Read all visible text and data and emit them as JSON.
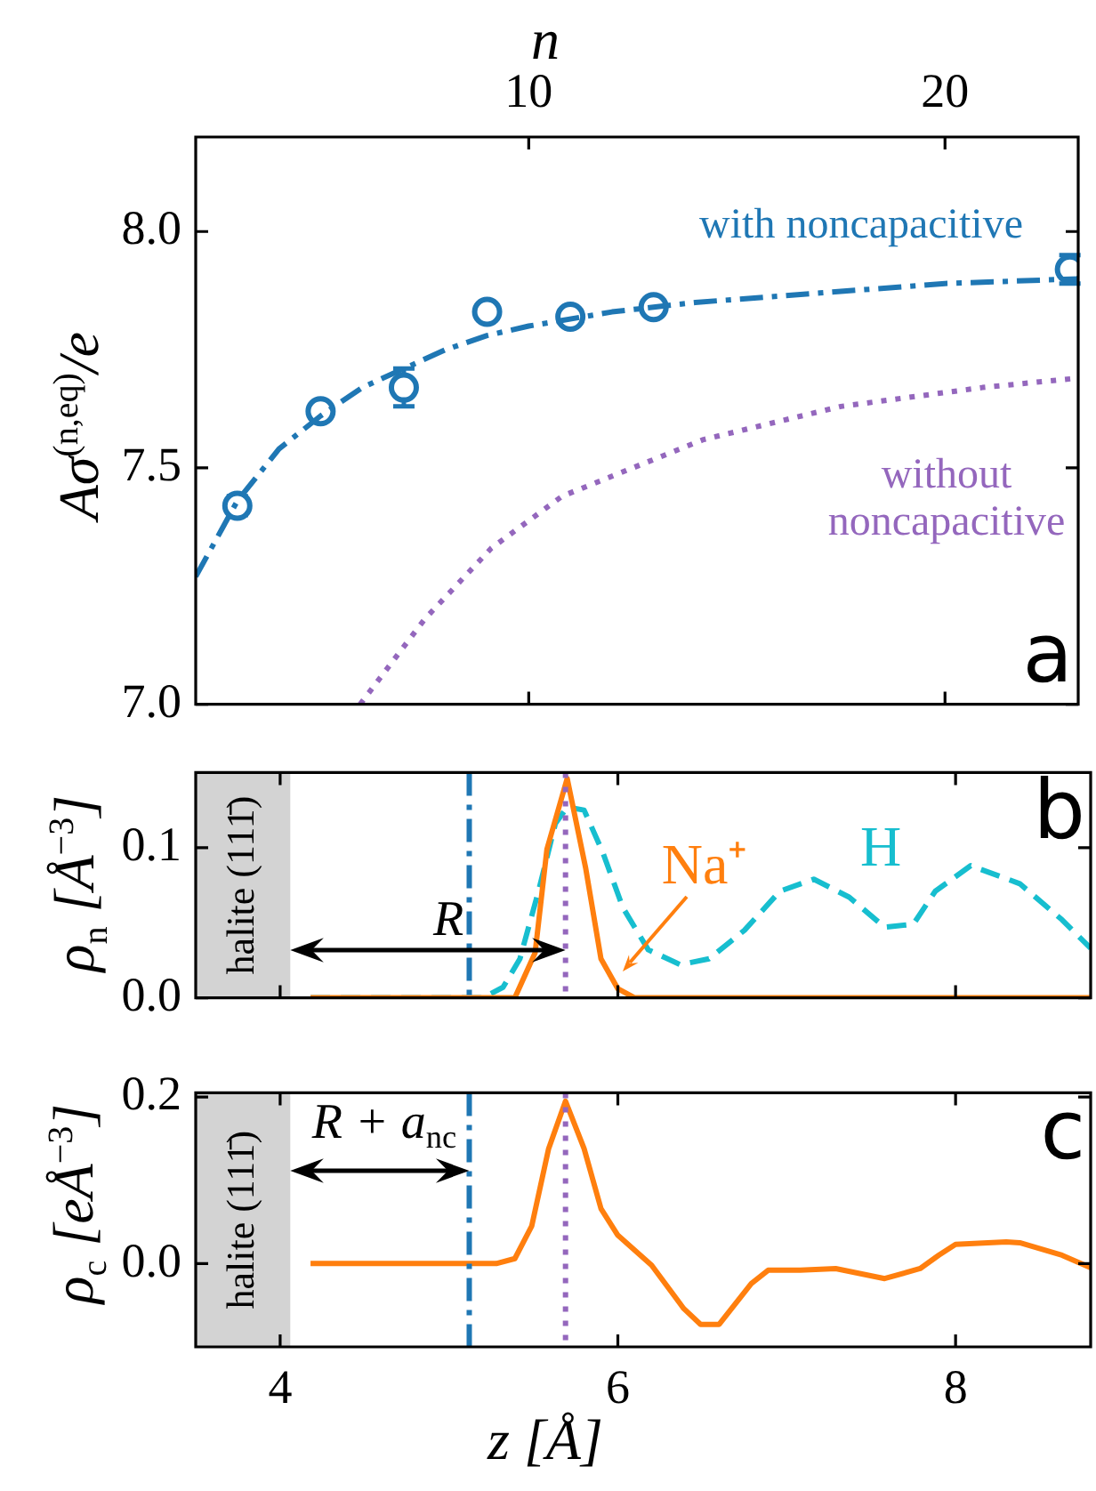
{
  "chart_data": [
    {
      "type": "line",
      "xlabel": "n",
      "ylabel": "Aσ$^{(n,eq)}$/e",
      "xlim": [
        2,
        23.2
      ],
      "xticks": [
        10,
        20
      ],
      "ylim": [
        7.0,
        8.2
      ],
      "yticks": [
        {
          "value": 7,
          "label": "7.0"
        },
        {
          "value": 7.5,
          "label": "7.5"
        },
        {
          "value": 8,
          "label": "8.0"
        }
      ],
      "legend": false,
      "annotations": [
        "a",
        "with noncapacitive",
        "without noncapacitive"
      ],
      "series": [
        {
          "type": "line",
          "color": "#1f77b4",
          "line_style": "dashdot",
          "x": [
            2,
            3,
            4,
            5,
            6,
            7,
            8,
            9,
            10,
            12,
            14,
            17,
            20,
            23.2
          ],
          "values": [
            7.27,
            7.43,
            7.54,
            7.61,
            7.67,
            7.71,
            7.75,
            7.78,
            7.8,
            7.83,
            7.85,
            7.87,
            7.89,
            7.9
          ]
        },
        {
          "type": "line",
          "color": "#9467bd",
          "line_style": "dotted",
          "x": [
            5.95,
            7.5,
            9.1,
            10.8,
            14.2,
            17.5,
            20.9,
            23.2
          ],
          "values": [
            7.0,
            7.18,
            7.33,
            7.44,
            7.56,
            7.63,
            7.67,
            7.69
          ]
        },
        {
          "type": "scatter",
          "color": "#1f77b4",
          "marker": "circle",
          "x": [
            3,
            5,
            7,
            9,
            11,
            13,
            23
          ],
          "values": [
            7.42,
            7.62,
            7.67,
            7.83,
            7.82,
            7.84,
            7.92
          ],
          "errors": [
            0.02,
            null,
            0.04,
            null,
            null,
            null,
            0.03
          ]
        }
      ]
    },
    {
      "type": "line",
      "ylabel": "ρ$_{n}$ [Å$^{−3}$]",
      "xlim": [
        3.5,
        8.8
      ],
      "xticks": [
        4,
        6,
        8
      ],
      "ylim": [
        0,
        0.15
      ],
      "yticks": [
        {
          "value": 0,
          "label": "0.0"
        },
        {
          "value": 0.1,
          "label": "0.1"
        }
      ],
      "tick_labels": "y",
      "legend": false,
      "bands": [
        {
          "axis": "x",
          "from": 3.5,
          "to": 4.06,
          "label": "halite (111̄)",
          "color": "#d3d3d3"
        }
      ],
      "ref_lines": [
        {
          "axis": "x",
          "value": 5.12,
          "color": "#1f77b4",
          "line_style": "dashdot"
        },
        {
          "axis": "x",
          "value": 5.69,
          "color": "#9467bd",
          "line_style": "dotted"
        }
      ],
      "annotations": [
        "b",
        "Na⁺",
        "H",
        "R"
      ],
      "series": [
        {
          "color": "#ff7f0e",
          "line_style": "solid",
          "x": [
            4.18,
            5.3,
            5.39,
            5.51,
            5.58,
            5.7,
            5.81,
            5.9,
            6.0,
            6.1,
            8.8
          ],
          "values": [
            0,
            0,
            0,
            0.03,
            0.099,
            0.146,
            0.086,
            0.026,
            0.006,
            0,
            0
          ]
        },
        {
          "color": "#17becf",
          "line_style": "dashed",
          "x": [
            4.18,
            5.2,
            5.32,
            5.42,
            5.53,
            5.63,
            5.7,
            5.8,
            5.91,
            6.03,
            6.18,
            6.37,
            6.54,
            6.75,
            6.96,
            7.16,
            7.37,
            7.58,
            7.75,
            7.88,
            8.09,
            8.38,
            8.63,
            8.8
          ],
          "values": [
            0,
            0,
            0.007,
            0.026,
            0.071,
            0.116,
            0.127,
            0.125,
            0.097,
            0.06,
            0.032,
            0.022,
            0.026,
            0.045,
            0.071,
            0.079,
            0.067,
            0.047,
            0.049,
            0.071,
            0.088,
            0.076,
            0.052,
            0.033
          ]
        }
      ]
    },
    {
      "type": "line",
      "xlabel": "z [Å]",
      "ylabel": "ρ$_{c}$ [eÅ$^{−3}$]",
      "xlim": [
        3.5,
        8.8
      ],
      "xticks": [
        4,
        6,
        8
      ],
      "ylim": [
        -0.1,
        0.205
      ],
      "yticks": [
        {
          "value": 0,
          "label": "0.0"
        },
        {
          "value": 0.2,
          "label": "0.2"
        }
      ],
      "legend": false,
      "bands": [
        {
          "axis": "x",
          "from": 3.5,
          "to": 4.06,
          "label": "halite (111̄)",
          "color": "#d3d3d3"
        }
      ],
      "ref_lines": [
        {
          "axis": "x",
          "value": 5.12,
          "color": "#1f77b4",
          "line_style": "dashdot"
        },
        {
          "axis": "x",
          "value": 5.69,
          "color": "#9467bd",
          "line_style": "dotted"
        }
      ],
      "annotations": [
        "c",
        "R + a$_{nc}$"
      ],
      "series": [
        {
          "color": "#ff7f0e",
          "line_style": "solid",
          "x": [
            4.18,
            5.28,
            5.39,
            5.49,
            5.59,
            5.69,
            5.8,
            5.9,
            6.0,
            6.2,
            6.39,
            6.49,
            6.6,
            6.79,
            6.89,
            7.08,
            7.29,
            7.58,
            7.79,
            7.9,
            8.0,
            8.3,
            8.38,
            8.63,
            8.8
          ],
          "values": [
            0,
            0,
            0.006,
            0.045,
            0.138,
            0.195,
            0.138,
            0.066,
            0.034,
            -0.002,
            -0.054,
            -0.073,
            -0.073,
            -0.024,
            -0.008,
            -0.008,
            -0.006,
            -0.018,
            -0.006,
            0.01,
            0.023,
            0.026,
            0.025,
            0.01,
            -0.005
          ]
        }
      ]
    }
  ]
}
